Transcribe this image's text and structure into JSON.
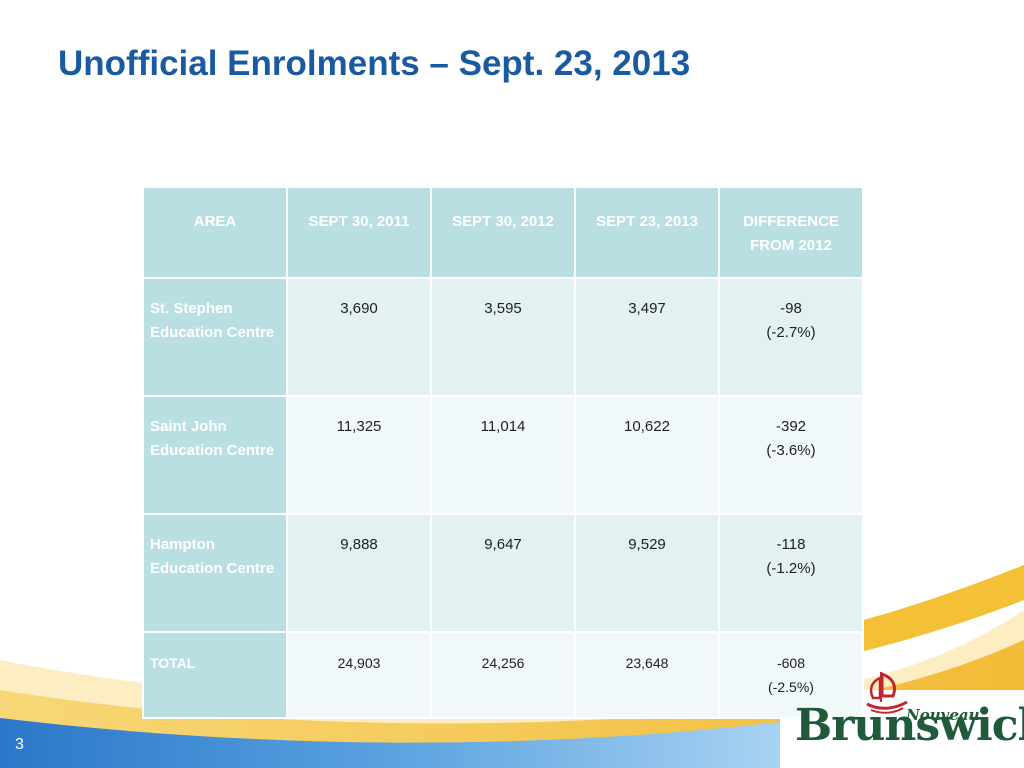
{
  "slide": {
    "title": "Unofficial Enrolments – Sept. 23, 2013",
    "page_number": "3"
  },
  "table": {
    "headers": [
      "AREA",
      "SEPT 30, 2011",
      "SEPT 30, 2012",
      "SEPT 23, 2013",
      "DIFFERENCE FROM 2012"
    ],
    "rows": [
      {
        "area": "St. Stephen Education Centre",
        "y2011": "3,690",
        "y2012": "3,595",
        "y2013": "3,497",
        "diff": "-98",
        "diff_pct": "(-2.7%)"
      },
      {
        "area": "Saint John Education Centre",
        "y2011": "11,325",
        "y2012": "11,014",
        "y2013": "10,622",
        "diff": "-392",
        "diff_pct": "(-3.6%)"
      },
      {
        "area": "Hampton Education Centre",
        "y2011": "9,888",
        "y2012": "9,647",
        "y2013": "9,529",
        "diff": "-118",
        "diff_pct": "(-1.2%)"
      },
      {
        "area": "TOTAL",
        "y2011": "24,903",
        "y2012": "24,256",
        "y2013": "23,648",
        "diff": "-608",
        "diff_pct": "(-2.5%)"
      }
    ]
  },
  "logo": {
    "word": "Brunswick",
    "sub": "Nouveau"
  },
  "colors": {
    "title": "#1a5aa0",
    "header_bg": "#b9dfe3",
    "band_blue": "#2a7fd0",
    "band_yellow": "#f4c136",
    "logo_green": "#1f5a3a",
    "logo_red": "#c0272d"
  }
}
